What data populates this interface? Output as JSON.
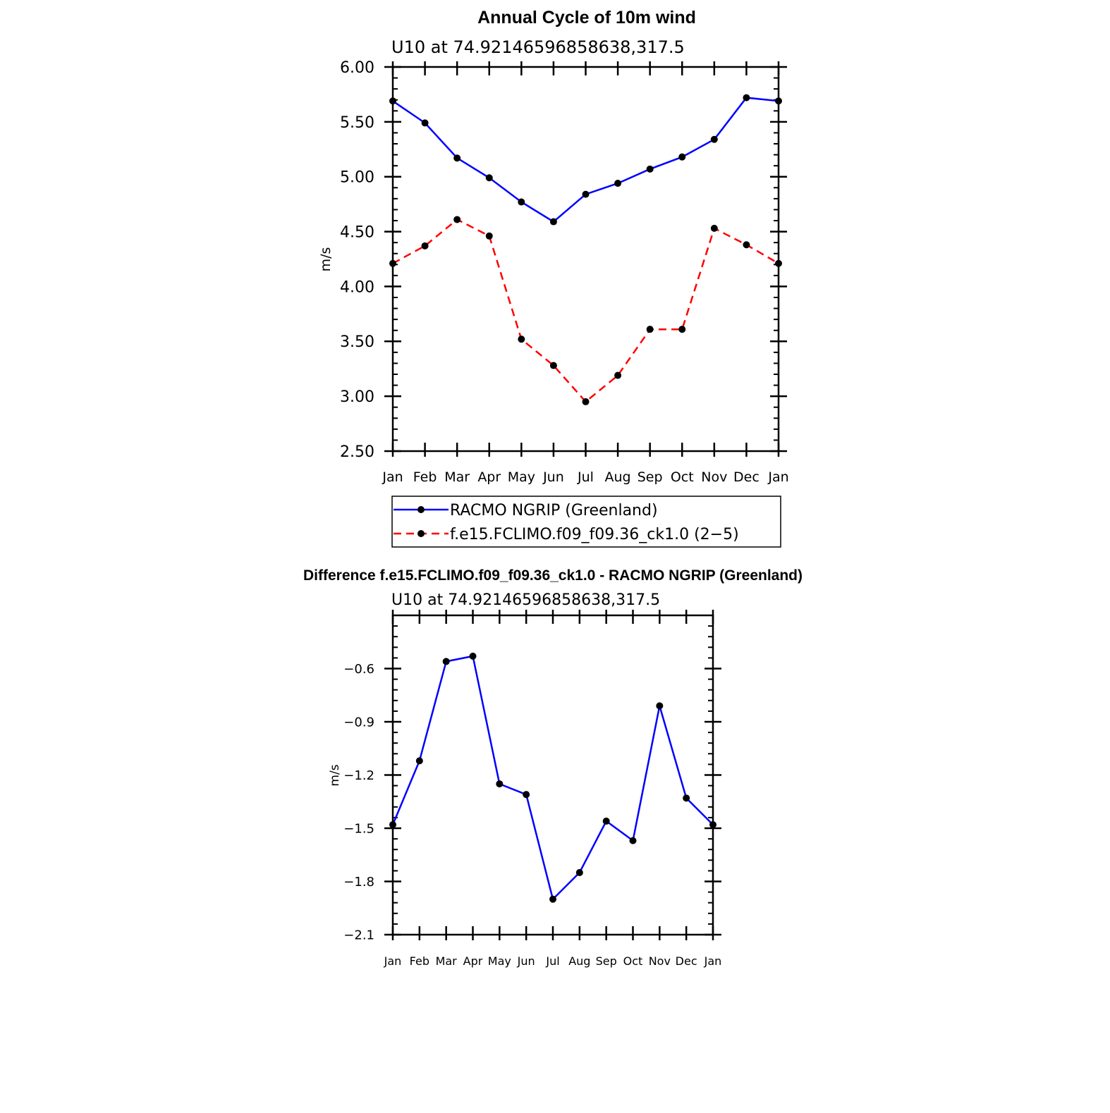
{
  "chart_data": [
    {
      "type": "line",
      "title": "Annual Cycle of 10m wind",
      "subtitle": "U10 at 74.92146596858638,317.5",
      "xlabel": "",
      "ylabel": "m/s",
      "categories": [
        "Jan",
        "Feb",
        "Mar",
        "Apr",
        "May",
        "Jun",
        "Jul",
        "Aug",
        "Sep",
        "Oct",
        "Nov",
        "Dec",
        "Jan"
      ],
      "ylim": [
        2.5,
        6.0
      ],
      "yticks": [
        "2.50",
        "3.00",
        "3.50",
        "4.00",
        "4.50",
        "5.00",
        "5.50",
        "6.00"
      ],
      "grid": false,
      "legend_position": "bottom",
      "series": [
        {
          "name": "RACMO NGRIP (Greenland)",
          "color": "#0000ff",
          "dash": "solid",
          "values": [
            5.69,
            5.49,
            5.17,
            4.99,
            4.77,
            4.59,
            4.84,
            4.94,
            5.07,
            5.18,
            5.34,
            5.72,
            5.69
          ]
        },
        {
          "name": "f.e15.FCLIMO.f09_f09.36_ck1.0 (2−5)",
          "color": "#ff0000",
          "dash": "dashed",
          "values": [
            4.21,
            4.37,
            4.61,
            4.46,
            3.52,
            3.28,
            2.95,
            3.19,
            3.61,
            3.61,
            4.53,
            4.38,
            4.21
          ]
        }
      ]
    },
    {
      "type": "line",
      "title": "Difference f.e15.FCLIMO.f09_f09.36_ck1.0 - RACMO NGRIP (Greenland)",
      "subtitle": "U10 at 74.92146596858638,317.5",
      "xlabel": "",
      "ylabel": "m/s",
      "categories": [
        "Jan",
        "Feb",
        "Mar",
        "Apr",
        "May",
        "Jun",
        "Jul",
        "Aug",
        "Sep",
        "Oct",
        "Nov",
        "Dec",
        "Jan"
      ],
      "ylim": [
        -2.1,
        -0.3
      ],
      "yticks": [
        "−2.1",
        "−1.8",
        "−1.5",
        "−1.2",
        "−0.9",
        "−0.6"
      ],
      "grid": false,
      "series": [
        {
          "color": "#0000ff",
          "dash": "solid",
          "values": [
            -1.48,
            -1.12,
            -0.56,
            -0.53,
            -1.25,
            -1.31,
            -1.9,
            -1.75,
            -1.46,
            -1.57,
            -0.81,
            -1.33,
            -1.48
          ]
        }
      ]
    }
  ]
}
